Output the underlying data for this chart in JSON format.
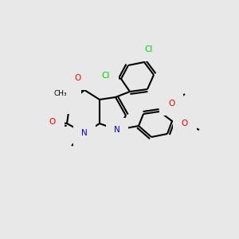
{
  "background_color": "#e8e8e8",
  "bond_color": "#000000",
  "bond_width": 1.5,
  "atom_colors": {
    "N": "#0000ff",
    "O": "#ff0000",
    "Cl": "#00cc00",
    "C": "#000000"
  },
  "font_size": 7.5
}
